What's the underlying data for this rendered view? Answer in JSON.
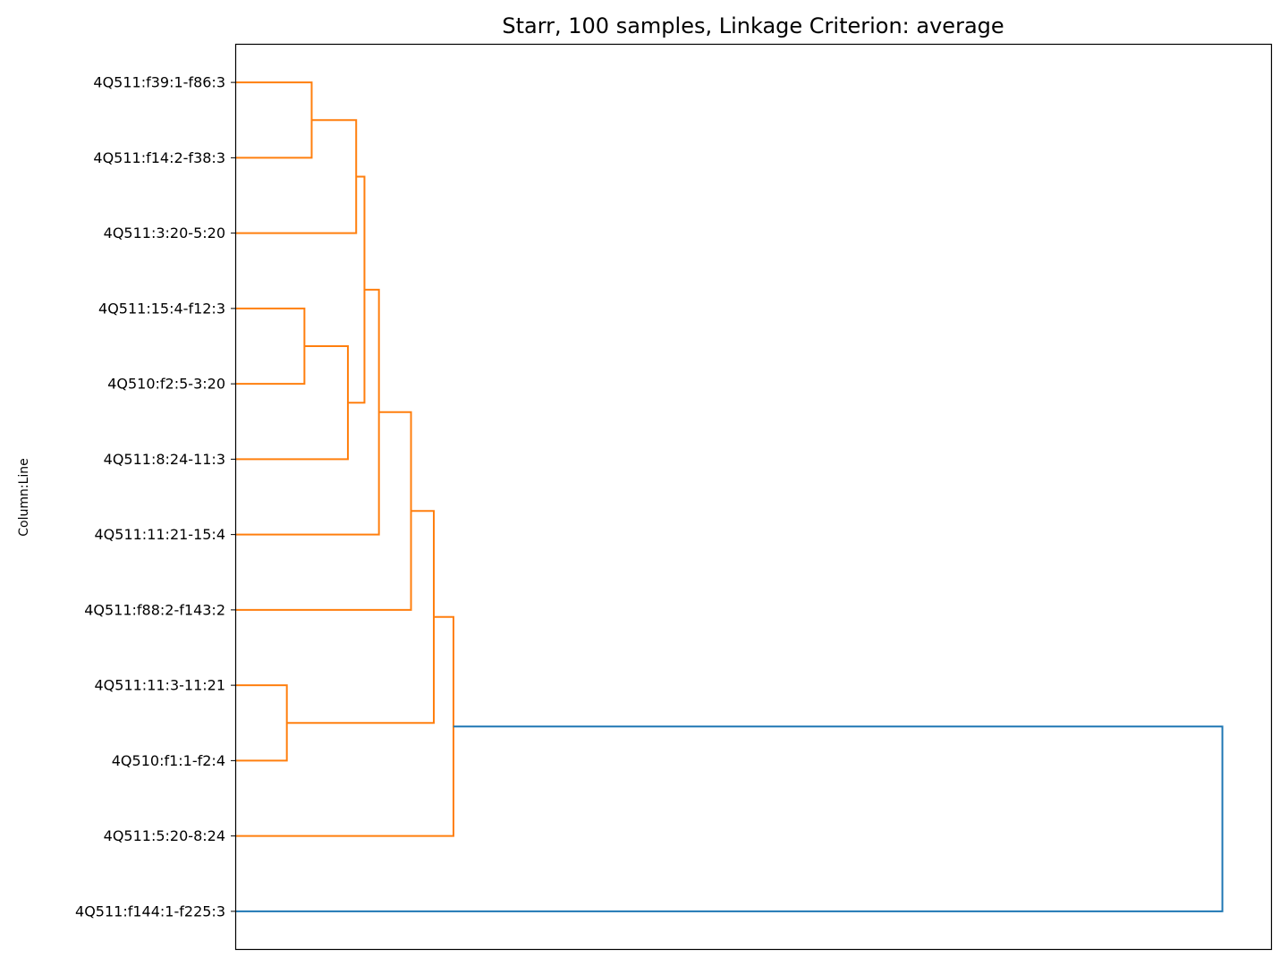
{
  "chart_data": {
    "type": "dendrogram",
    "title": "Starr, 100 samples, Linkage Criterion: average",
    "ylabel": "Column:Line",
    "xlabel": "",
    "orientation": "left",
    "x_axis_visible": false,
    "grid": false,
    "leaves": [
      "4Q511:f39:1-f86:3",
      "4Q511:f14:2-f38:3",
      "4Q511:3:20-5:20",
      "4Q511:15:4-f12:3",
      "4Q510:f2:5-3:20",
      "4Q511:8:24-11:3",
      "4Q511:11:21-15:4",
      "4Q511:f88:2-f143:2",
      "4Q511:11:3-11:21",
      "4Q510:f1:1-f2:4",
      "4Q511:5:20-8:24",
      "4Q511:f144:1-f225:3"
    ],
    "merges": [
      {
        "left": "L0",
        "right": "L1",
        "height": 0.073,
        "color": "#ff7f0e"
      },
      {
        "left": "L3",
        "right": "L4",
        "height": 0.066,
        "color": "#ff7f0e"
      },
      {
        "left": "L8",
        "right": "L9",
        "height": 0.049,
        "color": "#ff7f0e"
      },
      {
        "left": "M0",
        "right": "L2",
        "height": 0.116,
        "color": "#ff7f0e"
      },
      {
        "left": "M1",
        "right": "L5",
        "height": 0.108,
        "color": "#ff7f0e"
      },
      {
        "left": "M3",
        "right": "M4",
        "height": 0.124,
        "color": "#ff7f0e"
      },
      {
        "left": "M5",
        "right": "L6",
        "height": 0.138,
        "color": "#ff7f0e"
      },
      {
        "left": "M6",
        "right": "L7",
        "height": 0.169,
        "color": "#ff7f0e"
      },
      {
        "left": "M7",
        "right": "M2",
        "height": 0.191,
        "color": "#ff7f0e"
      },
      {
        "left": "M8",
        "right": "L10",
        "height": 0.21,
        "color": "#ff7f0e"
      },
      {
        "left": "M9",
        "right": "L11",
        "height": 0.953,
        "color": "#1f77b4"
      }
    ],
    "x_range": [
      0,
      1.0
    ],
    "colors": {
      "cluster": "#ff7f0e",
      "above_threshold": "#1f77b4",
      "axes": "#000000"
    }
  }
}
